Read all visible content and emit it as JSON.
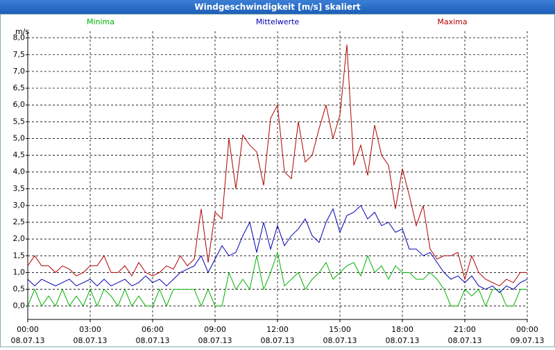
{
  "chart_data": {
    "type": "line",
    "title": "Windgeschwindigkeit [m/s] skaliert",
    "y_label": "m/s",
    "x": [
      0,
      20,
      40,
      60,
      80,
      100,
      120,
      140,
      160,
      180,
      200,
      220,
      240,
      260,
      280,
      300,
      320,
      340,
      360,
      380,
      400,
      420,
      440,
      460,
      480,
      500,
      520,
      540,
      560,
      580,
      600,
      620,
      640,
      660,
      680,
      700,
      720,
      740,
      760,
      780,
      800,
      820,
      840,
      860,
      880,
      900,
      920,
      940,
      960,
      980,
      1000,
      1020,
      1040,
      1060,
      1080,
      1100,
      1120,
      1140,
      1160,
      1180,
      1200,
      1220,
      1240,
      1260,
      1280,
      1300,
      1320,
      1340,
      1360,
      1380,
      1400,
      1420,
      1440
    ],
    "series": [
      {
        "name": "Minima",
        "color": "#00b000",
        "values": [
          0.0,
          0.5,
          0.0,
          0.3,
          0.0,
          0.5,
          0.0,
          0.3,
          0.0,
          0.5,
          0.0,
          0.5,
          0.3,
          0.0,
          0.5,
          0.0,
          0.3,
          0.0,
          0.0,
          0.5,
          0.0,
          0.5,
          0.5,
          0.5,
          0.5,
          0.0,
          0.5,
          0.0,
          0.0,
          1.0,
          0.5,
          0.8,
          0.5,
          1.5,
          0.5,
          1.0,
          1.6,
          0.6,
          0.8,
          1.0,
          0.5,
          0.8,
          1.0,
          1.3,
          0.8,
          1.0,
          1.2,
          1.3,
          0.9,
          1.5,
          1.0,
          1.2,
          0.8,
          1.2,
          1.0,
          1.0,
          0.8,
          0.8,
          1.0,
          0.8,
          0.5,
          0.0,
          0.0,
          0.5,
          0.3,
          0.5,
          0.0,
          0.5,
          0.5,
          0.0,
          0.0,
          0.5,
          0.5
        ]
      },
      {
        "name": "Mittelwerte",
        "color": "#0000b0",
        "values": [
          0.8,
          0.6,
          0.8,
          0.7,
          0.6,
          0.7,
          0.8,
          0.6,
          0.7,
          0.8,
          0.6,
          0.8,
          0.6,
          0.7,
          0.8,
          0.6,
          0.7,
          0.9,
          0.7,
          0.8,
          0.6,
          0.8,
          1.0,
          1.1,
          1.2,
          1.5,
          1.0,
          1.4,
          1.8,
          1.5,
          1.6,
          2.1,
          2.5,
          1.6,
          2.5,
          1.7,
          2.4,
          1.8,
          2.1,
          2.3,
          2.6,
          2.1,
          1.9,
          2.5,
          2.9,
          2.2,
          2.7,
          2.8,
          3.0,
          2.6,
          2.8,
          2.4,
          2.5,
          2.2,
          2.3,
          1.7,
          1.7,
          1.5,
          1.6,
          1.3,
          1.0,
          0.8,
          0.9,
          0.7,
          0.9,
          0.6,
          0.5,
          0.6,
          0.4,
          0.6,
          0.5,
          0.7,
          0.8
        ]
      },
      {
        "name": "Maxima",
        "color": "#b00000",
        "values": [
          1.2,
          1.5,
          1.2,
          1.2,
          1.0,
          1.2,
          1.1,
          0.9,
          1.0,
          1.2,
          1.2,
          1.5,
          1.0,
          1.0,
          1.2,
          0.9,
          1.3,
          1.0,
          0.9,
          1.0,
          1.2,
          1.1,
          1.5,
          1.2,
          1.4,
          2.9,
          1.3,
          2.8,
          2.6,
          5.0,
          3.5,
          5.1,
          4.8,
          4.6,
          3.6,
          5.6,
          6.0,
          4.0,
          3.8,
          5.5,
          4.3,
          4.5,
          5.3,
          6.0,
          5.0,
          5.7,
          7.8,
          4.2,
          4.8,
          3.9,
          5.4,
          4.5,
          4.2,
          2.9,
          4.1,
          3.3,
          2.4,
          3.0,
          1.7,
          1.4,
          1.5,
          1.5,
          1.6,
          0.8,
          1.5,
          1.0,
          0.8,
          0.7,
          0.6,
          0.8,
          0.7,
          1.0,
          1.0
        ]
      }
    ],
    "xlim": [
      0,
      1440
    ],
    "xticks": [
      {
        "value": 0,
        "label": "00:00",
        "date": "08.07.13"
      },
      {
        "value": 180,
        "label": "03:00",
        "date": "08.07.13"
      },
      {
        "value": 360,
        "label": "06:00",
        "date": "08.07.13"
      },
      {
        "value": 540,
        "label": "09:00",
        "date": "08.07.13"
      },
      {
        "value": 720,
        "label": "12:00",
        "date": "08.07.13"
      },
      {
        "value": 900,
        "label": "15:00",
        "date": "08.07.13"
      },
      {
        "value": 1080,
        "label": "18:00",
        "date": "08.07.13"
      },
      {
        "value": 1260,
        "label": "21:00",
        "date": "08.07.13"
      },
      {
        "value": 1440,
        "label": "00:00",
        "date": "09.07.13"
      }
    ],
    "ylim": [
      -0.4,
      8.2
    ],
    "yticks": [
      {
        "value": 0,
        "label": "0,0"
      },
      {
        "value": 0.5,
        "label": "0,5"
      },
      {
        "value": 1,
        "label": "1,0"
      },
      {
        "value": 1.5,
        "label": "1,5"
      },
      {
        "value": 2,
        "label": "2,0"
      },
      {
        "value": 2.5,
        "label": "2,5"
      },
      {
        "value": 3,
        "label": "3,0"
      },
      {
        "value": 3.5,
        "label": "3,5"
      },
      {
        "value": 4,
        "label": "4,0"
      },
      {
        "value": 4.5,
        "label": "4,5"
      },
      {
        "value": 5,
        "label": "5,0"
      },
      {
        "value": 5.5,
        "label": "5,5"
      },
      {
        "value": 6,
        "label": "6,0"
      },
      {
        "value": 6.5,
        "label": "6,5"
      },
      {
        "value": 7,
        "label": "7,0"
      },
      {
        "value": 7.5,
        "label": "7,5"
      },
      {
        "value": 8,
        "label": "8,0"
      }
    ],
    "grid": true
  }
}
